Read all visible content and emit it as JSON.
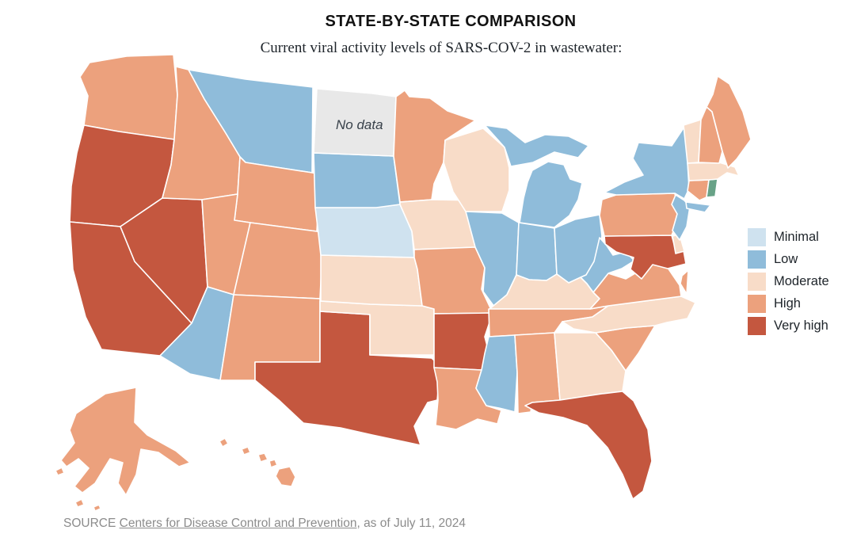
{
  "header": {
    "title": "STATE-BY-STATE COMPARISON",
    "subtitle": "Current viral activity levels of SARS-COV-2 in wastewater:"
  },
  "legend": {
    "items": [
      {
        "label": "Minimal",
        "color": "#cfe2ef"
      },
      {
        "label": "Low",
        "color": "#8fbcda"
      },
      {
        "label": "Moderate",
        "color": "#f8dcc8"
      },
      {
        "label": "High",
        "color": "#eca17d"
      },
      {
        "label": "Very high",
        "color": "#c4573f"
      }
    ]
  },
  "map": {
    "no_data_label": "No data",
    "colors": {
      "minimal": "#cfe2ef",
      "low": "#8fbcda",
      "moderate": "#f8dcc8",
      "high": "#eca17d",
      "very_high": "#c4573f",
      "no_data": "#e8e8e8",
      "unclassified_green": "#68a287"
    },
    "states": [
      {
        "code": "WA",
        "name": "Washington",
        "level": "high"
      },
      {
        "code": "OR",
        "name": "Oregon",
        "level": "very_high"
      },
      {
        "code": "CA",
        "name": "California",
        "level": "very_high"
      },
      {
        "code": "NV",
        "name": "Nevada",
        "level": "very_high"
      },
      {
        "code": "ID",
        "name": "Idaho",
        "level": "high"
      },
      {
        "code": "MT",
        "name": "Montana",
        "level": "low"
      },
      {
        "code": "WY",
        "name": "Wyoming",
        "level": "high"
      },
      {
        "code": "UT",
        "name": "Utah",
        "level": "high"
      },
      {
        "code": "CO",
        "name": "Colorado",
        "level": "high"
      },
      {
        "code": "AZ",
        "name": "Arizona",
        "level": "low"
      },
      {
        "code": "NM",
        "name": "New Mexico",
        "level": "high"
      },
      {
        "code": "TX",
        "name": "Texas",
        "level": "very_high"
      },
      {
        "code": "OK",
        "name": "Oklahoma",
        "level": "moderate"
      },
      {
        "code": "KS",
        "name": "Kansas",
        "level": "moderate"
      },
      {
        "code": "NE",
        "name": "Nebraska",
        "level": "minimal"
      },
      {
        "code": "SD",
        "name": "South Dakota",
        "level": "low"
      },
      {
        "code": "ND",
        "name": "North Dakota",
        "level": "no_data"
      },
      {
        "code": "MN",
        "name": "Minnesota",
        "level": "high"
      },
      {
        "code": "IA",
        "name": "Iowa",
        "level": "moderate"
      },
      {
        "code": "MO",
        "name": "Missouri",
        "level": "high"
      },
      {
        "code": "AR",
        "name": "Arkansas",
        "level": "very_high"
      },
      {
        "code": "LA",
        "name": "Louisiana",
        "level": "high"
      },
      {
        "code": "WI",
        "name": "Wisconsin",
        "level": "moderate"
      },
      {
        "code": "IL",
        "name": "Illinois",
        "level": "low"
      },
      {
        "code": "MI",
        "name": "Michigan",
        "level": "low"
      },
      {
        "code": "IN",
        "name": "Indiana",
        "level": "low"
      },
      {
        "code": "OH",
        "name": "Ohio",
        "level": "low"
      },
      {
        "code": "KY",
        "name": "Kentucky",
        "level": "moderate"
      },
      {
        "code": "TN",
        "name": "Tennessee",
        "level": "high"
      },
      {
        "code": "MS",
        "name": "Mississippi",
        "level": "low"
      },
      {
        "code": "AL",
        "name": "Alabama",
        "level": "high"
      },
      {
        "code": "GA",
        "name": "Georgia",
        "level": "moderate"
      },
      {
        "code": "FL",
        "name": "Florida",
        "level": "very_high"
      },
      {
        "code": "SC",
        "name": "South Carolina",
        "level": "high"
      },
      {
        "code": "NC",
        "name": "North Carolina",
        "level": "moderate"
      },
      {
        "code": "VA",
        "name": "Virginia",
        "level": "high"
      },
      {
        "code": "WV",
        "name": "West Virginia",
        "level": "low"
      },
      {
        "code": "MD",
        "name": "Maryland",
        "level": "very_high"
      },
      {
        "code": "DE",
        "name": "Delaware",
        "level": "moderate"
      },
      {
        "code": "PA",
        "name": "Pennsylvania",
        "level": "high"
      },
      {
        "code": "NJ",
        "name": "New Jersey",
        "level": "low"
      },
      {
        "code": "NY",
        "name": "New York",
        "level": "low"
      },
      {
        "code": "CT",
        "name": "Connecticut",
        "level": "high"
      },
      {
        "code": "RI",
        "name": "Rhode Island",
        "level": "unclassified_green"
      },
      {
        "code": "MA",
        "name": "Massachusetts",
        "level": "moderate"
      },
      {
        "code": "VT",
        "name": "Vermont",
        "level": "moderate"
      },
      {
        "code": "NH",
        "name": "New Hampshire",
        "level": "high"
      },
      {
        "code": "ME",
        "name": "Maine",
        "level": "high"
      },
      {
        "code": "AK",
        "name": "Alaska",
        "level": "high"
      },
      {
        "code": "HI",
        "name": "Hawaii",
        "level": "high"
      }
    ]
  },
  "source": {
    "prefix": "SOURCE ",
    "link_text": "Centers for Disease Control and Prevention",
    "suffix": ", as of July 11, 2024"
  }
}
